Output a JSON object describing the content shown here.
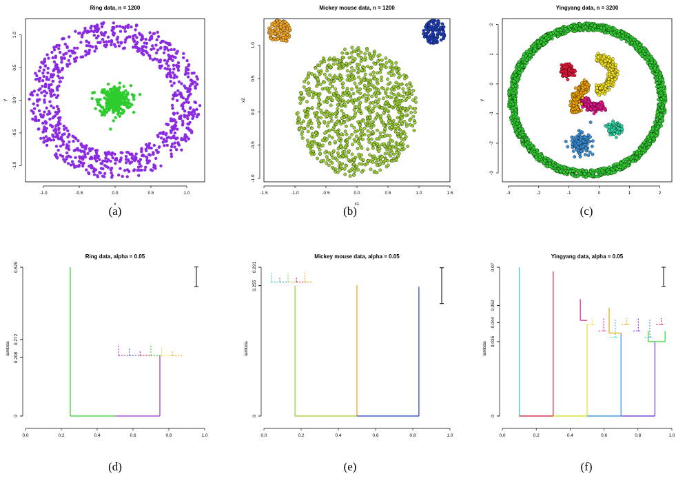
{
  "chart_data": [
    {
      "type": "scatter",
      "title": "Ring data, n = 1200",
      "xlabel": "x",
      "ylabel": "y",
      "xlim": [
        -1.25,
        1.25
      ],
      "ylim": [
        -1.25,
        1.25
      ],
      "xticks": [
        "-1.0",
        "-0.5",
        "0.0",
        "0.5",
        "1.0"
      ],
      "yticks": [
        "-1.0",
        "-0.5",
        "0.0",
        "0.5",
        "1.0"
      ],
      "caption": "(a)",
      "colors": {
        "ring": "#8A2BE2",
        "center": "#2ECC2E"
      },
      "clusters": [
        {
          "shape": "ring",
          "cx": 0,
          "cy": 0,
          "r_inner": 0.8,
          "r_outer": 1.2,
          "n": 900,
          "color": "#8A2BE2"
        },
        {
          "shape": "blob",
          "cx": 0,
          "cy": 0,
          "r": 0.2,
          "n": 300,
          "color": "#2ECC2E"
        }
      ]
    },
    {
      "type": "scatter",
      "title": "Mickey mouse data, n = 1200",
      "xlabel": "x1",
      "ylabel": "x2",
      "xlim": [
        -1.5,
        1.5
      ],
      "ylim": [
        -1.05,
        1.4
      ],
      "xticks": [
        "-1.5",
        "-1.0",
        "-0.5",
        "0.0",
        "0.5",
        "1.0",
        "1.5"
      ],
      "yticks": [
        "-1.0",
        "-0.5",
        "0.0",
        "0.5",
        "1.0"
      ],
      "caption": "(b)",
      "colors": {
        "left_ear": "#F5A623",
        "right_ear": "#1F3FBF",
        "head": "#9ACD32"
      },
      "clusters": [
        {
          "shape": "disk",
          "cx": -1.25,
          "cy": 1.2,
          "r": 0.18,
          "n": 100,
          "color": "#F5A623"
        },
        {
          "shape": "disk",
          "cx": 1.25,
          "cy": 1.2,
          "r": 0.18,
          "n": 100,
          "color": "#1F3FBF"
        },
        {
          "shape": "disk",
          "cx": 0,
          "cy": 0,
          "r": 0.97,
          "n": 1000,
          "color": "#9ACD32"
        }
      ]
    },
    {
      "type": "scatter",
      "title": "Yingyang data, n = 3200",
      "xlabel": "",
      "ylabel": "y",
      "xlim": [
        -3.2,
        2.4
      ],
      "ylim": [
        -3.3,
        2.2
      ],
      "xticks": [
        "-3",
        "-2",
        "-1",
        "0",
        "1",
        "2"
      ],
      "yticks": [
        "-3",
        "-2",
        "-1",
        "0",
        "1",
        "2"
      ],
      "caption": "(c)",
      "colors": {
        "ring": "#32CD32",
        "ring_dark": "#7B2FE0",
        "red": "#E8173A",
        "magenta": "#E8178F",
        "orange": "#F0A500",
        "yellow": "#F0E020",
        "blue": "#3A8FD9",
        "teal": "#30D8A8"
      },
      "clusters": [
        {
          "shape": "ring",
          "cx": -0.4,
          "cy": -0.55,
          "r_inner": 2.35,
          "r_outer": 2.6,
          "n": 2000,
          "color": "#32CD32"
        },
        {
          "shape": "blob",
          "cx": -1.05,
          "cy": 0.45,
          "r": 0.18,
          "n": 150,
          "color": "#E8173A"
        },
        {
          "shape": "blob",
          "cx": 0.5,
          "cy": -1.5,
          "r": 0.18,
          "n": 150,
          "color": "#30D8A8"
        },
        {
          "shape": "arc",
          "cx": -0.1,
          "cy": 0.35,
          "r": 0.55,
          "a0": -90,
          "a1": 90,
          "n": 300,
          "color": "#F0E020"
        },
        {
          "shape": "arc",
          "cx": -0.1,
          "cy": -0.3,
          "r": 0.5,
          "a0": 200,
          "a1": 300,
          "n": 200,
          "color": "#E8178F"
        },
        {
          "shape": "arc",
          "cx": 0.1,
          "cy": -0.8,
          "r": 0.9,
          "a0": 120,
          "a1": 190,
          "n": 250,
          "color": "#F0A500"
        },
        {
          "shape": "blob",
          "cx": -0.6,
          "cy": -2.0,
          "r": 0.3,
          "n": 150,
          "color": "#3A8FD9"
        }
      ]
    },
    {
      "type": "tree",
      "title": "Ring data, alpha = 0.05",
      "xlabel": "",
      "ylabel": "lambda",
      "xlim": [
        0,
        1
      ],
      "ylim": [
        0,
        0.529
      ],
      "xticks": [
        "0.0",
        "0.2",
        "0.4",
        "0.6",
        "0.8",
        "1.0"
      ],
      "yticks": [
        "0",
        "0.208",
        "0.272",
        "0.529"
      ],
      "yticks_values": [
        0,
        0.208,
        0.272,
        0.529
      ],
      "caption": "(d)"
    },
    {
      "type": "tree",
      "title": "Mickey mouse data, alpha = 0.05",
      "xlabel": "",
      "ylabel": "lambda",
      "xlim": [
        0,
        1
      ],
      "ylim": [
        0,
        0.291
      ],
      "xticks": [
        "0.0",
        "0.2",
        "0.4",
        "0.6",
        "0.8",
        "1.0"
      ],
      "yticks": [
        "0",
        "0.255",
        "0.291"
      ],
      "yticks_values": [
        0,
        0.255,
        0.291
      ],
      "caption": "(e)"
    },
    {
      "type": "tree",
      "title": "Yingyang data, alpha = 0.05",
      "xlabel": "",
      "ylabel": "lambda",
      "xlim": [
        0,
        1
      ],
      "ylim": [
        0,
        0.07
      ],
      "xticks": [
        "0.0",
        "0.2",
        "0.4",
        "0.6",
        "0.8",
        "1.0"
      ],
      "yticks": [
        "0",
        "0.035",
        "0.044",
        "0.052",
        "0.07"
      ],
      "yticks_values": [
        0,
        0.035,
        0.044,
        0.052,
        0.07
      ],
      "caption": "(f)"
    }
  ]
}
